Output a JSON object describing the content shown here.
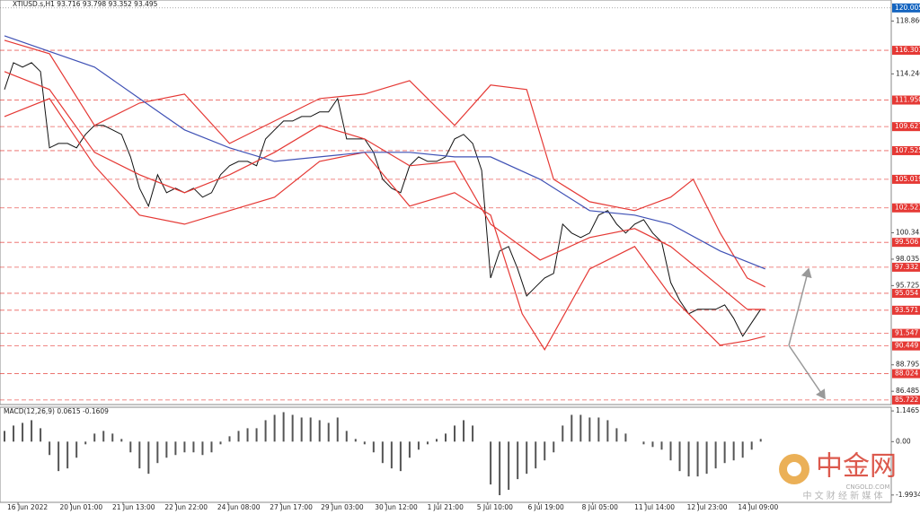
{
  "chart_data": [
    {
      "type": "line",
      "title": "XTIUSD.s,H1  93.716 93.798 93.352 93.495",
      "xlim": [
        -3,
        591
      ],
      "ylim": [
        85.4,
        120.7
      ],
      "xticks": [
        {
          "value": 9,
          "label": "16 Jun 2022"
        },
        {
          "value": 44,
          "label": "20 Jun 01:00"
        },
        {
          "value": 79,
          "label": "21 Jun 13:00"
        },
        {
          "value": 114,
          "label": "22 Jun 22:00"
        },
        {
          "value": 149,
          "label": "24 Jun 08:00"
        },
        {
          "value": 184,
          "label": "27 Jun 17:00"
        },
        {
          "value": 218,
          "label": "29 Jun 03:00"
        },
        {
          "value": 254,
          "label": "30 Jun 12:00"
        },
        {
          "value": 289,
          "label": "1 Jul 21:00"
        },
        {
          "value": 322,
          "label": "5 Jul 10:00"
        },
        {
          "value": 356,
          "label": "6 Jul 19:00"
        },
        {
          "value": 392,
          "label": "8 Jul 05:00"
        },
        {
          "value": 427,
          "label": "11 Jul 14:00"
        },
        {
          "value": 462,
          "label": "12 Jul 23:00"
        },
        {
          "value": 496,
          "label": "14 Jul 09:00"
        }
      ],
      "yticks": [
        {
          "value": 118.86,
          "label": "118.860"
        },
        {
          "value": 114.24,
          "label": "114.240"
        },
        100.345,
        98.035,
        95.725,
        88.795,
        86.485
      ],
      "current": 120.005,
      "current_color": "#1565c0",
      "levels": [
        116.301,
        {
          "value": 111.95,
          "label": "111.950"
        },
        109.627,
        107.525,
        105.019,
        102.521,
        99.506,
        97.332,
        95.054,
        93.571,
        91.547,
        90.449,
        88.024,
        85.722
      ],
      "level_color": "#e53935",
      "series": [
        {
          "color": "#111111",
          "x": [
            0,
            6,
            12,
            18,
            24,
            30,
            36,
            42,
            48,
            54,
            60,
            66,
            72,
            78,
            84,
            90,
            96,
            102,
            108,
            114,
            120,
            126,
            132,
            138,
            144,
            150,
            156,
            162,
            168,
            174,
            180,
            186,
            192,
            198,
            204,
            210,
            216,
            222,
            228,
            234,
            240,
            246,
            252,
            258,
            264,
            270,
            276,
            282,
            288,
            294,
            300,
            306,
            312,
            318,
            324,
            330,
            336,
            342,
            348,
            354,
            360,
            366,
            372,
            378,
            384,
            390,
            396,
            402,
            408,
            414,
            420,
            426,
            432,
            438,
            444,
            450,
            456,
            462,
            468,
            474,
            480,
            486,
            492,
            498,
            504
          ],
          "values": [
            112.87,
            115.22,
            114.83,
            115.22,
            114.44,
            107.77,
            108.16,
            108.16,
            107.77,
            108.95,
            109.73,
            109.73,
            109.34,
            108.95,
            106.98,
            104.24,
            102.67,
            105.42,
            103.85,
            104.24,
            103.85,
            104.24,
            103.46,
            103.85,
            105.42,
            106.2,
            106.59,
            106.59,
            106.2,
            108.55,
            109.34,
            110.12,
            110.12,
            110.51,
            110.51,
            110.91,
            110.91,
            112.08,
            108.55,
            108.55,
            108.55,
            107.38,
            105.02,
            104.24,
            103.85,
            106.2,
            106.98,
            106.59,
            106.59,
            106.98,
            108.55,
            108.95,
            108.16,
            105.81,
            96.39,
            98.75,
            99.14,
            97.18,
            94.82,
            95.61,
            96.39,
            96.79,
            101.1,
            100.32,
            99.93,
            100.32,
            101.89,
            102.28,
            101.1,
            100.32,
            101.1,
            101.49,
            100.32,
            99.53,
            96.0,
            94.43,
            93.26,
            93.65,
            93.65,
            93.65,
            94.04,
            92.87,
            91.3,
            92.48,
            93.65
          ]
        },
        {
          "color": "#e53935",
          "x": [
            0,
            30,
            60,
            90,
            120,
            150,
            180,
            210,
            240,
            270,
            300,
            324,
            348,
            366,
            390,
            420,
            444,
            459,
            477,
            495,
            507
          ],
          "values": [
            117.18,
            116.0,
            109.73,
            111.69,
            112.47,
            108.16,
            110.12,
            112.08,
            112.47,
            113.65,
            109.73,
            113.26,
            112.87,
            105.02,
            103.06,
            102.28,
            103.46,
            105.02,
            100.32,
            96.39,
            95.61
          ]
        },
        {
          "color": "#e53935",
          "x": [
            0,
            30,
            60,
            90,
            120,
            150,
            180,
            210,
            240,
            270,
            300,
            324,
            357,
            390,
            420,
            444,
            477,
            495,
            507
          ],
          "values": [
            114.44,
            112.87,
            107.38,
            105.42,
            103.85,
            105.42,
            107.38,
            109.73,
            108.55,
            106.2,
            106.59,
            101.1,
            97.96,
            99.93,
            100.71,
            99.14,
            95.61,
            93.65,
            93.65
          ]
        },
        {
          "color": "#e53935",
          "x": [
            0,
            30,
            60,
            90,
            120,
            150,
            180,
            210,
            240,
            270,
            300,
            324,
            345,
            360,
            390,
            420,
            444,
            477,
            495,
            507
          ],
          "values": [
            110.51,
            112.08,
            106.2,
            101.89,
            101.1,
            102.28,
            103.46,
            106.59,
            107.38,
            102.67,
            103.85,
            101.89,
            93.26,
            90.12,
            97.18,
            99.14,
            94.82,
            90.51,
            90.91,
            91.3
          ]
        },
        {
          "color": "#3f51b5",
          "x": [
            0,
            60,
            90,
            120,
            150,
            180,
            210,
            240,
            270,
            300,
            324,
            357,
            390,
            420,
            444,
            477,
            507
          ],
          "values": [
            117.57,
            114.83,
            112.08,
            109.34,
            107.77,
            106.59,
            106.98,
            107.38,
            107.38,
            106.98,
            106.98,
            105.02,
            102.28,
            101.89,
            101.1,
            98.75,
            97.18
          ]
        }
      ]
    },
    {
      "type": "bar",
      "title": "MACD(12,26,9) 0.0615 -0.1609",
      "color": "#555555",
      "ylim": [
        -2.2,
        1.25
      ],
      "yticks": [
        1.1465,
        {
          "value": 0,
          "label": "0.00"
        },
        -1.9934
      ],
      "x": [
        0,
        6,
        12,
        18,
        24,
        30,
        36,
        42,
        48,
        54,
        60,
        66,
        72,
        78,
        84,
        90,
        96,
        102,
        108,
        114,
        120,
        126,
        132,
        138,
        144,
        150,
        156,
        162,
        168,
        174,
        180,
        186,
        192,
        198,
        204,
        210,
        216,
        222,
        228,
        234,
        240,
        246,
        252,
        258,
        264,
        270,
        276,
        282,
        288,
        294,
        300,
        306,
        312,
        318,
        324,
        330,
        336,
        342,
        348,
        354,
        360,
        366,
        372,
        378,
        384,
        390,
        396,
        402,
        408,
        414,
        420,
        426,
        432,
        438,
        444,
        450,
        456,
        462,
        468,
        474,
        480,
        486,
        492,
        498,
        504
      ],
      "values": [
        0.4,
        0.6,
        0.7,
        0.8,
        0.5,
        -0.5,
        -1.1,
        -1.0,
        -0.6,
        -0.1,
        0.3,
        0.4,
        0.3,
        0.1,
        -0.4,
        -1.0,
        -1.2,
        -0.8,
        -0.6,
        -0.5,
        -0.4,
        -0.4,
        -0.5,
        -0.4,
        -0.1,
        0.2,
        0.4,
        0.5,
        0.5,
        0.8,
        1.0,
        1.1,
        1.0,
        0.9,
        0.9,
        0.8,
        0.7,
        0.9,
        0.4,
        0.1,
        -0.1,
        -0.4,
        -0.8,
        -1.0,
        -1.1,
        -0.6,
        -0.3,
        -0.1,
        0.1,
        0.3,
        0.6,
        0.8,
        0.6,
        0.0,
        -1.6,
        -2.0,
        -1.8,
        -1.4,
        -1.2,
        -1.0,
        -0.7,
        -0.4,
        0.6,
        1.0,
        1.0,
        0.9,
        0.9,
        0.8,
        0.5,
        0.3,
        0.0,
        -0.1,
        -0.2,
        -0.3,
        -0.7,
        -1.1,
        -1.3,
        -1.3,
        -1.2,
        -1.0,
        -0.8,
        -0.7,
        -0.6,
        -0.3,
        0.1
      ]
    }
  ],
  "watermark": {
    "name": "中金网",
    "domain": "CNGOLD.COM",
    "tagline": "中 文 财 经 新 媒 体"
  }
}
